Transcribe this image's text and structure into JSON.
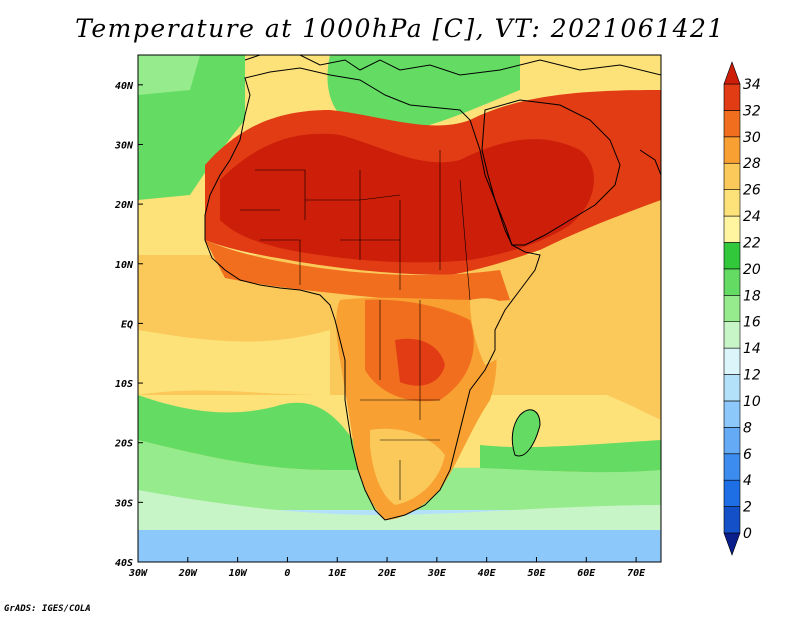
{
  "title": "Temperature at 1000hPa [C], VT: 2021061421",
  "credit": "GrADS: IGES/COLA",
  "map": {
    "lon_range": [
      -30,
      75
    ],
    "lat_range": [
      -40,
      45
    ],
    "lon_ticks": [
      {
        "value": -30,
        "label": "30W"
      },
      {
        "value": -20,
        "label": "20W"
      },
      {
        "value": -10,
        "label": "10W"
      },
      {
        "value": 0,
        "label": "0"
      },
      {
        "value": 10,
        "label": "10E"
      },
      {
        "value": 20,
        "label": "20E"
      },
      {
        "value": 30,
        "label": "30E"
      },
      {
        "value": 40,
        "label": "40E"
      },
      {
        "value": 50,
        "label": "50E"
      },
      {
        "value": 60,
        "label": "60E"
      },
      {
        "value": 70,
        "label": "70E"
      }
    ],
    "lat_ticks": [
      {
        "value": 40,
        "label": "40N"
      },
      {
        "value": 30,
        "label": "30N"
      },
      {
        "value": 20,
        "label": "20N"
      },
      {
        "value": 10,
        "label": "10N"
      },
      {
        "value": 0,
        "label": "EQ"
      },
      {
        "value": -10,
        "label": "10S"
      },
      {
        "value": -20,
        "label": "20S"
      },
      {
        "value": -30,
        "label": "30S"
      },
      {
        "value": -40,
        "label": "40S"
      }
    ]
  },
  "colorbar": {
    "levels": [
      "0",
      "2",
      "4",
      "6",
      "8",
      "10",
      "12",
      "14",
      "16",
      "18",
      "20",
      "22",
      "24",
      "26",
      "28",
      "30",
      "32",
      "34"
    ],
    "colors": [
      "#0a1e8c",
      "#1450c8",
      "#1e6ee6",
      "#3c8cf0",
      "#64aaf5",
      "#8cc8fa",
      "#b4e1fa",
      "#dcf5fa",
      "#c8f5c8",
      "#96eb8c",
      "#64dc64",
      "#32c83c",
      "#fff5a0",
      "#fde27a",
      "#fbc85a",
      "#f8a032",
      "#f06e1e",
      "#e13c14",
      "#cd1e0a"
    ]
  }
}
